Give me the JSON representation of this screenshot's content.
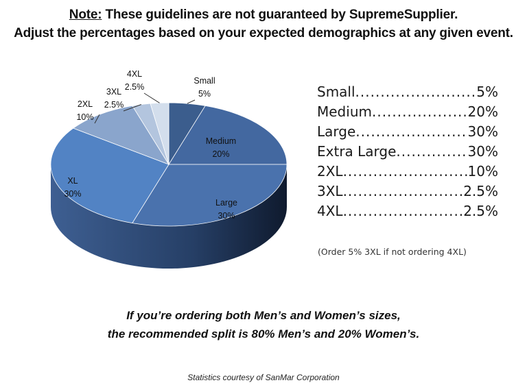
{
  "note": {
    "label": "Note:",
    "line1_rest": " These guidelines are not guaranteed by SupremeSupplier.",
    "line2": "Adjust the percentages based on your expected demographics at any given event."
  },
  "chart_data": {
    "type": "pie",
    "style": "3d",
    "slices": [
      {
        "label": "Small",
        "value": 5,
        "display": "5%",
        "color": "#3b5d8d"
      },
      {
        "label": "Medium",
        "value": 20,
        "display": "20%",
        "color": "#4368a0"
      },
      {
        "label": "Large",
        "value": 30,
        "display": "30%",
        "color": "#4a72ad"
      },
      {
        "label": "XL",
        "value": 30,
        "display": "30%",
        "color": "#5283c4"
      },
      {
        "label": "2XL",
        "value": 10,
        "display": "10%",
        "color": "#8aa5cc"
      },
      {
        "label": "3XL",
        "value": 2.5,
        "display": "2.5%",
        "color": "#b3c5de"
      },
      {
        "label": "4XL",
        "value": 2.5,
        "display": "2.5%",
        "color": "#d3deec"
      }
    ]
  },
  "legend": [
    {
      "label": "Small",
      "pct": "5%"
    },
    {
      "label": "Medium",
      "pct": "20%"
    },
    {
      "label": "Large",
      "pct": "30%"
    },
    {
      "label": "Extra Large",
      "pct": "30%"
    },
    {
      "label": "2XL",
      "pct": "10%"
    },
    {
      "label": "3XL",
      "pct": "2.5%"
    },
    {
      "label": "4XL",
      "pct": "2.5%"
    }
  ],
  "order_note": "(Order 5% 3XL if not ordering 4XL)",
  "split": {
    "line1": "If you’re ordering both Men’s and Women’s sizes,",
    "line2": "the recommended split is 80% Men’s and 20% Women’s."
  },
  "credit": "Statistics courtesy of SanMar Corporation"
}
